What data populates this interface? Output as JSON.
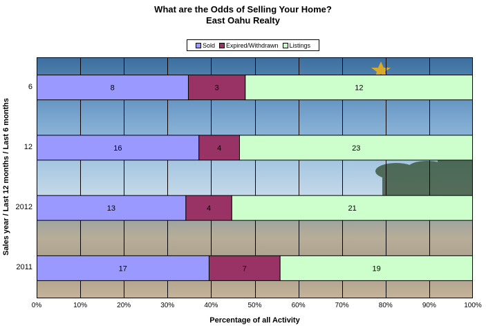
{
  "chart_data": {
    "type": "bar",
    "orientation": "horizontal",
    "stacked": "percent",
    "title": "What are the Odds of Selling Your Home?",
    "subtitle": "East Oahu Realty",
    "xlabel": "Percentage of all Activity",
    "ylabel": "Sales year / Last 12 months  / Last 6 months",
    "xlim": [
      0,
      100
    ],
    "x_ticks": [
      "0%",
      "10%",
      "20%",
      "30%",
      "40%",
      "50%",
      "60%",
      "70%",
      "80%",
      "90%",
      "100%"
    ],
    "categories": [
      "6",
      "12",
      "2012",
      "2011"
    ],
    "series": [
      {
        "name": "Sold",
        "color": "#9999ff",
        "values": [
          8,
          16,
          13,
          17
        ]
      },
      {
        "name": "Expired/Withdrawn",
        "color": "#993366",
        "values": [
          3,
          4,
          4,
          7
        ]
      },
      {
        "name": "Listings",
        "color": "#ccffcc",
        "values": [
          12,
          23,
          21,
          19
        ]
      }
    ],
    "grid": true,
    "legend_position": "top-center",
    "background_watermark": "East Oahu Realty"
  }
}
